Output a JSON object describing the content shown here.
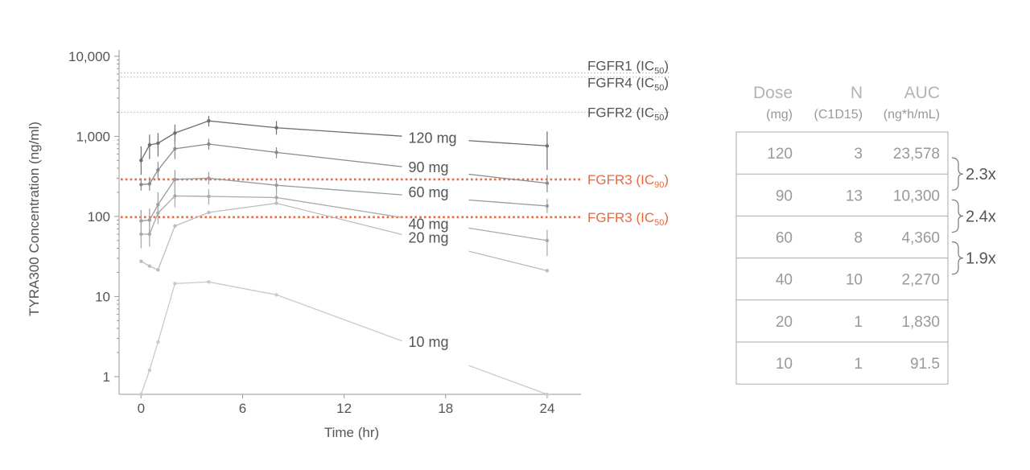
{
  "chart_data": {
    "type": "line",
    "xlabel": "Time (hr)",
    "ylabel": "TYRA300 Concentration (ng/ml)",
    "yscale": "log",
    "ylim": [
      0.6,
      12000
    ],
    "xlim": [
      -1.3,
      26
    ],
    "xticks": [
      0,
      6,
      12,
      18,
      24
    ],
    "yticks": [
      {
        "value": 10000,
        "label": "10,000"
      },
      {
        "value": 1000,
        "label": "1,000"
      },
      {
        "value": 100,
        "label": "100"
      },
      {
        "value": 10,
        "label": "10"
      },
      {
        "value": 1,
        "label": "1"
      }
    ],
    "reference_lines": [
      {
        "name": "FGFR1",
        "value": 6200,
        "sub": "50",
        "style": "dotted-gray"
      },
      {
        "name": "FGFR4",
        "value": 5500,
        "sub": "50",
        "style": "dotted-gray"
      },
      {
        "name": "FGFR2",
        "value": 2000,
        "sub": "50",
        "style": "dotted-gray"
      },
      {
        "name": "FGFR3",
        "value": 290,
        "sub": "90",
        "style": "dotted-orange"
      },
      {
        "name": "FGFR3",
        "value": 98,
        "sub": "50",
        "style": "dotted-orange"
      }
    ],
    "ref_label_prefix": "IC",
    "series": [
      {
        "name": "120 mg",
        "color": "#6e6e6e",
        "x": [
          0,
          0.5,
          1,
          2,
          4,
          8,
          24
        ],
        "y": [
          500,
          780,
          820,
          1100,
          1560,
          1280,
          760
        ],
        "err": [
          [
            330,
            750
          ],
          [
            520,
            1050
          ],
          [
            560,
            1100
          ],
          [
            800,
            1400
          ],
          [
            1330,
            1800
          ],
          [
            1050,
            1550
          ],
          [
            380,
            1150
          ]
        ],
        "label_at": [
          15.8,
          950
        ]
      },
      {
        "name": "90 mg",
        "color": "#8a8a8a",
        "x": [
          0,
          0.5,
          1,
          2,
          4,
          8,
          24
        ],
        "y": [
          250,
          255,
          380,
          700,
          800,
          630,
          260
        ],
        "err": [
          [
            210,
            300
          ],
          [
            210,
            310
          ],
          [
            290,
            480
          ],
          [
            520,
            900
          ],
          [
            680,
            930
          ],
          [
            530,
            730
          ],
          [
            200,
            330
          ]
        ],
        "label_at": [
          15.8,
          410
        ]
      },
      {
        "name": "60 mg",
        "color": "#9b9b9b",
        "x": [
          0,
          0.5,
          1,
          2,
          4,
          8,
          24
        ],
        "y": [
          88,
          90,
          140,
          290,
          300,
          245,
          135
        ],
        "err": [
          [
            60,
            120
          ],
          [
            62,
            125
          ],
          [
            100,
            200
          ],
          [
            200,
            380
          ],
          [
            250,
            360
          ],
          [
            200,
            290
          ],
          [
            110,
            165
          ]
        ],
        "label_at": [
          15.8,
          200
        ]
      },
      {
        "name": "40 mg",
        "color": "#a9a9a9",
        "x": [
          0,
          0.5,
          1,
          2,
          4,
          8,
          24
        ],
        "y": [
          60,
          60,
          110,
          180,
          178,
          172,
          50
        ],
        "err": [
          [
            40,
            120
          ],
          [
            42,
            110
          ],
          [
            80,
            150
          ],
          [
            130,
            250
          ],
          [
            140,
            220
          ],
          [
            140,
            210
          ],
          [
            32,
            68
          ]
        ],
        "label_at": [
          15.8,
          80
        ]
      },
      {
        "name": "20 mg",
        "color": "#bdbdbd",
        "x": [
          0,
          0.5,
          1,
          2,
          4,
          8,
          24
        ],
        "y": [
          27.5,
          24,
          21.5,
          76,
          112,
          146,
          21
        ],
        "err": [],
        "label_at": [
          15.8,
          54
        ]
      },
      {
        "name": "10 mg",
        "color": "#cacaca",
        "x": [
          0,
          0.5,
          1,
          2,
          4,
          8,
          24
        ],
        "y": [
          0.6,
          1.2,
          2.7,
          14.5,
          15.2,
          10.5,
          0.6
        ],
        "err": [],
        "label_at": [
          15.8,
          2.7
        ]
      }
    ]
  },
  "table": {
    "headers": [
      {
        "title": "Dose",
        "unit": "(mg)"
      },
      {
        "title": "N",
        "unit": "(C1D15)"
      },
      {
        "title": "AUC",
        "unit": "(ng*h/mL)"
      }
    ],
    "rows": [
      {
        "dose": "120",
        "n": "3",
        "auc": "23,578"
      },
      {
        "dose": "90",
        "n": "13",
        "auc": "10,300"
      },
      {
        "dose": "60",
        "n": "8",
        "auc": "4,360"
      },
      {
        "dose": "40",
        "n": "10",
        "auc": "2,270"
      },
      {
        "dose": "20",
        "n": "1",
        "auc": "1,830"
      },
      {
        "dose": "10",
        "n": "1",
        "auc": "91.5"
      }
    ],
    "ratios": [
      "2.3x",
      "2.4x",
      "1.9x"
    ]
  },
  "colors": {
    "axis": "#999999",
    "ref_gray": "#bbbbbb",
    "ref_highlight": "#e66a45",
    "table_border": "#aaaaaa"
  }
}
